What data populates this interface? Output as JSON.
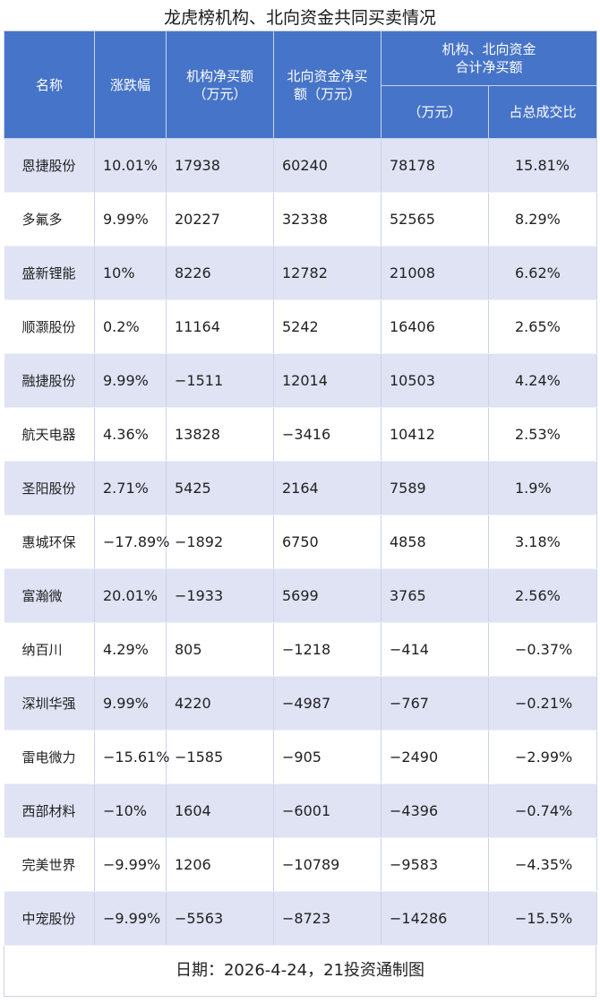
{
  "title": "龙虎榜机构、北向资金共同买卖情况",
  "headers": {
    "name": "名称",
    "change": "涨跌幅",
    "inst_net_buy": "机构净买额\n（万元）",
    "north_net_buy": "北向资金净买\n额（万元）",
    "combined_group": "机构、北向资金\n合计净买额",
    "combined_amount": "（万元）",
    "share_of_turnover": "占总成交比"
  },
  "rows": [
    {
      "name": "恩捷股份",
      "change": "10.01%",
      "inst": "17938",
      "north": "60240",
      "total": "78178",
      "ratio": "15.81%"
    },
    {
      "name": "多氟多",
      "change": "9.99%",
      "inst": "20227",
      "north": "32338",
      "total": "52565",
      "ratio": "8.29%"
    },
    {
      "name": "盛新锂能",
      "change": "10%",
      "inst": "8226",
      "north": "12782",
      "total": "21008",
      "ratio": "6.62%"
    },
    {
      "name": "顺灏股份",
      "change": "0.2%",
      "inst": "11164",
      "north": "5242",
      "total": "16406",
      "ratio": "2.65%"
    },
    {
      "name": "融捷股份",
      "change": "9.99%",
      "inst": "−1511",
      "north": "12014",
      "total": "10503",
      "ratio": "4.24%"
    },
    {
      "name": "航天电器",
      "change": "4.36%",
      "inst": "13828",
      "north": "−3416",
      "total": "10412",
      "ratio": "2.53%"
    },
    {
      "name": "圣阳股份",
      "change": "2.71%",
      "inst": "5425",
      "north": "2164",
      "total": "7589",
      "ratio": "1.9%"
    },
    {
      "name": "惠城环保",
      "change": "−17.89%",
      "inst": "−1892",
      "north": "6750",
      "total": "4858",
      "ratio": "3.18%"
    },
    {
      "name": "富瀚微",
      "change": "20.01%",
      "inst": "−1933",
      "north": "5699",
      "total": "3765",
      "ratio": "2.56%"
    },
    {
      "name": "纳百川",
      "change": "4.29%",
      "inst": "805",
      "north": "−1218",
      "total": "−414",
      "ratio": "−0.37%"
    },
    {
      "name": "深圳华强",
      "change": "9.99%",
      "inst": "4220",
      "north": "−4987",
      "total": "−767",
      "ratio": "−0.21%"
    },
    {
      "name": "雷电微力",
      "change": "−15.61%",
      "inst": "−1585",
      "north": "−905",
      "total": "−2490",
      "ratio": "−2.99%"
    },
    {
      "name": "西部材料",
      "change": "−10%",
      "inst": "1604",
      "north": "−6001",
      "total": "−4396",
      "ratio": "−0.74%"
    },
    {
      "name": "完美世界",
      "change": "−9.99%",
      "inst": "1206",
      "north": "−10789",
      "total": "−9583",
      "ratio": "−4.35%"
    },
    {
      "name": "中宠股份",
      "change": "−9.99%",
      "inst": "−5563",
      "north": "−8723",
      "total": "−14286",
      "ratio": "−15.5%"
    }
  ],
  "footer": "日期：2026-4-24，21投资通制图",
  "colors": {
    "header_bg": "#4674c8",
    "row_alt_bg": "#dfe3f4"
  }
}
